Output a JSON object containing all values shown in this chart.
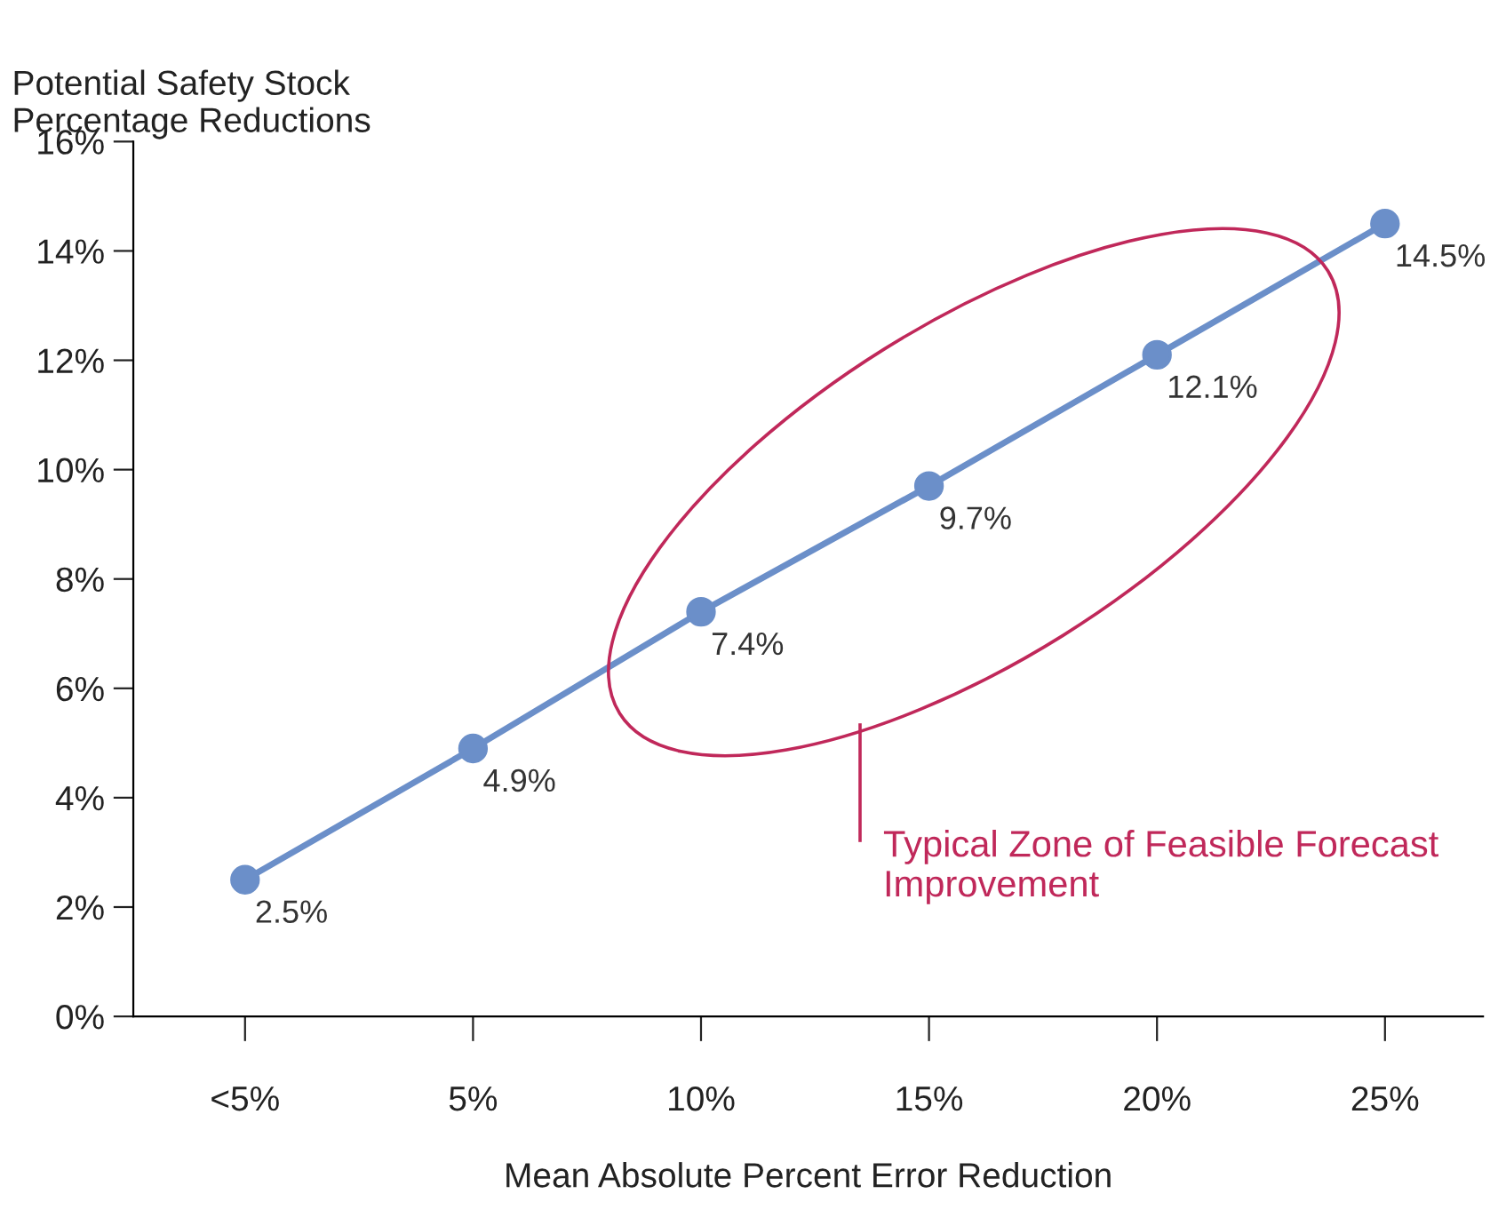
{
  "chart_data": {
    "type": "line",
    "ylabel": "Potential Safety Stock\nPercentage Reductions",
    "xlabel": "Mean Absolute Percent Error Reduction",
    "categories": [
      "<5%",
      "5%",
      "10%",
      "15%",
      "20%",
      "25%"
    ],
    "values": [
      2.5,
      4.9,
      7.4,
      9.7,
      12.1,
      14.5
    ],
    "value_labels": [
      "2.5%",
      "4.9%",
      "7.4%",
      "9.7%",
      "12.1%",
      "14.5%"
    ],
    "color": "#6b8fc9",
    "marker": "circle",
    "line_style": "solid",
    "ylim": [
      0,
      16
    ],
    "yticks": [
      {
        "value": 0,
        "label": "0%"
      },
      {
        "value": 2,
        "label": "2%"
      },
      {
        "value": 4,
        "label": "4%"
      },
      {
        "value": 6,
        "label": "6%"
      },
      {
        "value": 8,
        "label": "8%"
      },
      {
        "value": 10,
        "label": "10%"
      },
      {
        "value": 12,
        "label": "12%"
      },
      {
        "value": 14,
        "label": "14%"
      },
      {
        "value": 16,
        "label": "16%"
      }
    ],
    "annotations": [
      "Typical Zone of Feasible Forecast Improvement"
    ],
    "grid": false,
    "legend": false
  }
}
